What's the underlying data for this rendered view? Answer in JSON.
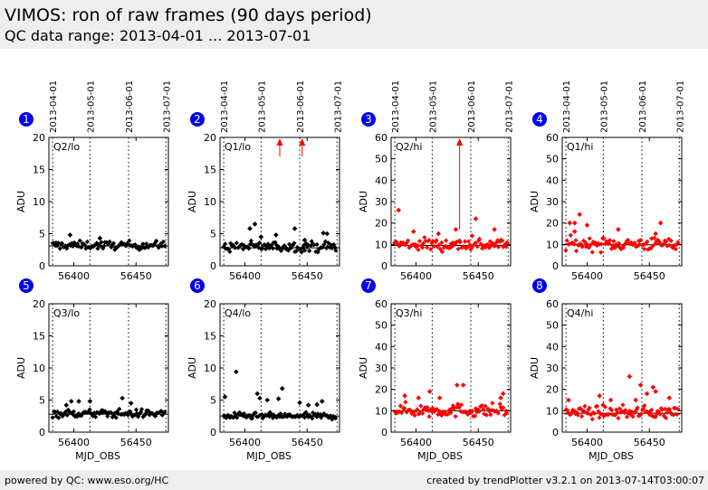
{
  "header": {
    "title": "VIMOS: ron of raw frames (90 days period)",
    "subtitle": "QC data range: 2013-04-01 ... 2013-07-01"
  },
  "footer": {
    "left": "powered by QC: www.eso.org/HC",
    "right": "created by trendPlotter v3.2.1 on 2013-07-14T03:00:07"
  },
  "colors": {
    "lo_series": "#000000",
    "hi_series": "#ff0000",
    "badge": "#0000ee",
    "background": "#eeeeee"
  },
  "chart_data": {
    "type": "scatter",
    "date_axis_labels": [
      "2013-04-01",
      "2013-05-01",
      "2013-06-01",
      "2013-07-01"
    ],
    "date_axis_mjd": [
      56383,
      56413,
      56444,
      56474
    ],
    "xlim": [
      56380,
      56476
    ],
    "xticks": [
      56400,
      56450
    ],
    "xlabel": "MJD_OBS",
    "panels": [
      {
        "num": "1",
        "label": "Q2/lo",
        "ylabel": "ADU",
        "ylim": [
          0,
          20
        ],
        "yticks": [
          0,
          5,
          10,
          15,
          20
        ],
        "ref": 3.1,
        "color": "#000000",
        "center": 3.2,
        "spread": 0.45,
        "outliers": [
          [
            56397,
            4.8
          ],
          [
            56421,
            4.3
          ]
        ],
        "arrows": []
      },
      {
        "num": "2",
        "label": "Q1/lo",
        "ylabel": "ADU",
        "ylim": [
          0,
          20
        ],
        "yticks": [
          0,
          5,
          10,
          15,
          20
        ],
        "ref": 2.8,
        "color": "#000000",
        "center": 3.0,
        "spread": 0.55,
        "outliers": [
          [
            56408,
            6.5
          ],
          [
            56404,
            5.8
          ],
          [
            56440,
            5.8
          ],
          [
            56413,
            4.5
          ],
          [
            56463,
            5.1
          ],
          [
            56466,
            5.0
          ],
          [
            56448,
            4.0
          ],
          [
            56425,
            4.8
          ]
        ],
        "arrows": [
          [
            56428,
            17
          ],
          [
            56446,
            17
          ]
        ]
      },
      {
        "num": "3",
        "label": "Q2/hi",
        "ylabel": "ADU",
        "ylim": [
          0,
          60
        ],
        "yticks": [
          0,
          10,
          20,
          30,
          40,
          50,
          60
        ],
        "ref": 9.5,
        "color": "#ff0000",
        "center": 10.0,
        "spread": 2.2,
        "outliers": [
          [
            56386,
            26
          ],
          [
            56448,
            22
          ],
          [
            56418,
            15
          ],
          [
            56432,
            17
          ],
          [
            56445,
            14
          ],
          [
            56463,
            17
          ],
          [
            56398,
            16
          ]
        ],
        "arrows": [
          [
            56435,
            17
          ]
        ]
      },
      {
        "num": "4",
        "label": "Q1/hi",
        "ylabel": "ADU",
        "ylim": [
          0,
          60
        ],
        "yticks": [
          0,
          10,
          20,
          30,
          40,
          50,
          60
        ],
        "ref": 9.8,
        "color": "#ff0000",
        "center": 10.2,
        "spread": 2.2,
        "outliers": [
          [
            56394,
            24
          ],
          [
            56386,
            20
          ],
          [
            56390,
            20
          ],
          [
            56390,
            16
          ],
          [
            56400,
            19
          ],
          [
            56425,
            17
          ],
          [
            56459,
            20
          ],
          [
            56455,
            15
          ]
        ],
        "arrows": []
      },
      {
        "num": "5",
        "label": "Q3/lo",
        "ylabel": "ADU",
        "ylim": [
          0,
          20
        ],
        "yticks": [
          0,
          5,
          10,
          15,
          20
        ],
        "ref": 2.8,
        "color": "#000000",
        "center": 2.9,
        "spread": 0.45,
        "outliers": [
          [
            56398,
            4.8
          ],
          [
            56404,
            4.8
          ],
          [
            56413,
            4.8
          ],
          [
            56439,
            5.3
          ],
          [
            56446,
            4.5
          ],
          [
            56394,
            4.2
          ]
        ],
        "arrows": []
      },
      {
        "num": "6",
        "label": "Q4/lo",
        "ylabel": "ADU",
        "ylim": [
          0,
          20
        ],
        "yticks": [
          0,
          5,
          10,
          15,
          20
        ],
        "ref": 2.5,
        "color": "#000000",
        "center": 2.5,
        "spread": 0.35,
        "outliers": [
          [
            56393,
            9.4
          ],
          [
            56384,
            5.5
          ],
          [
            56410,
            6.0
          ],
          [
            56412,
            5.3
          ],
          [
            56430,
            6.8
          ],
          [
            56418,
            5.0
          ],
          [
            56427,
            5.2
          ],
          [
            56444,
            4.6
          ],
          [
            56451,
            4.2
          ],
          [
            56458,
            4.3
          ],
          [
            56462,
            4.8
          ]
        ],
        "arrows": []
      },
      {
        "num": "7",
        "label": "Q3/hi",
        "ylabel": "ADU",
        "ylim": [
          0,
          60
        ],
        "yticks": [
          0,
          10,
          20,
          30,
          40,
          50,
          60
        ],
        "ref": 10.0,
        "color": "#ff0000",
        "center": 10.2,
        "spread": 2.2,
        "outliers": [
          [
            56411,
            19
          ],
          [
            56433,
            22
          ],
          [
            56438,
            22
          ],
          [
            56470,
            18
          ],
          [
            56391,
            17
          ],
          [
            56419,
            16
          ],
          [
            56402,
            16
          ],
          [
            56468,
            16
          ]
        ],
        "arrows": []
      },
      {
        "num": "8",
        "label": "Q4/hi",
        "ylabel": "ADU",
        "ylim": [
          0,
          60
        ],
        "yticks": [
          0,
          10,
          20,
          30,
          40,
          50,
          60
        ],
        "ref": 8.8,
        "color": "#ff0000",
        "center": 9.3,
        "spread": 2.0,
        "outliers": [
          [
            56434,
            26
          ],
          [
            56443,
            22
          ],
          [
            56453,
            21
          ],
          [
            56455,
            19
          ],
          [
            56410,
            17
          ],
          [
            56419,
            15
          ],
          [
            56439,
            15
          ],
          [
            56448,
            18
          ],
          [
            56466,
            16
          ],
          [
            56385,
            15
          ]
        ],
        "arrows": []
      }
    ]
  }
}
